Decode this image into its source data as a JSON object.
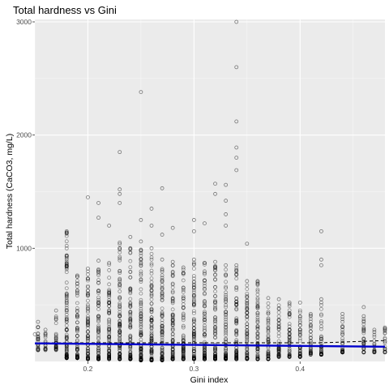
{
  "chart_data": {
    "type": "scatter",
    "title": "Total hardness vs Gini",
    "xlabel": "Gini index",
    "ylabel": "Total hardness (CaCO3, mg/L)",
    "xlim": [
      0.15,
      0.48
    ],
    "ylim": [
      0,
      3000
    ],
    "x_ticks": [
      0.2,
      0.3,
      0.4
    ],
    "x_tick_labels": [
      "0.2",
      "0.3",
      "0.4"
    ],
    "y_ticks": [
      1000,
      2000,
      3000
    ],
    "y_tick_labels": [
      "1000",
      "2000",
      "3000"
    ],
    "grid": true,
    "legend": "none",
    "colors": {
      "panel": "#ebebeb",
      "grid_major": "#ffffff",
      "points": "#000000",
      "fit_line": "#0000cc",
      "dashed_line": "#000000"
    },
    "column_ranges": [
      {
        "x": 0.153,
        "min": 100,
        "max": 350
      },
      {
        "x": 0.16,
        "min": 100,
        "max": 280
      },
      {
        "x": 0.17,
        "min": 100,
        "max": 450
      },
      {
        "x": 0.18,
        "min": 30,
        "max": 1150
      },
      {
        "x": 0.19,
        "min": 30,
        "max": 760
      },
      {
        "x": 0.2,
        "min": 20,
        "max": 820
      },
      {
        "x": 0.21,
        "min": 20,
        "max": 890
      },
      {
        "x": 0.22,
        "min": 20,
        "max": 870
      },
      {
        "x": 0.23,
        "min": 20,
        "max": 1050
      },
      {
        "x": 0.24,
        "min": 20,
        "max": 1000
      },
      {
        "x": 0.25,
        "min": 10,
        "max": 1060
      },
      {
        "x": 0.26,
        "min": 10,
        "max": 1000
      },
      {
        "x": 0.27,
        "min": 10,
        "max": 900
      },
      {
        "x": 0.28,
        "min": 20,
        "max": 880
      },
      {
        "x": 0.29,
        "min": 20,
        "max": 830
      },
      {
        "x": 0.3,
        "min": 20,
        "max": 900
      },
      {
        "x": 0.31,
        "min": 20,
        "max": 870
      },
      {
        "x": 0.32,
        "min": 20,
        "max": 880
      },
      {
        "x": 0.33,
        "min": 20,
        "max": 850
      },
      {
        "x": 0.34,
        "min": 20,
        "max": 850
      },
      {
        "x": 0.35,
        "min": 20,
        "max": 710
      },
      {
        "x": 0.36,
        "min": 20,
        "max": 710
      },
      {
        "x": 0.37,
        "min": 20,
        "max": 560
      },
      {
        "x": 0.38,
        "min": 40,
        "max": 550
      },
      {
        "x": 0.39,
        "min": 40,
        "max": 520
      },
      {
        "x": 0.4,
        "min": 40,
        "max": 520
      },
      {
        "x": 0.41,
        "min": 60,
        "max": 420
      },
      {
        "x": 0.42,
        "min": 60,
        "max": 550
      },
      {
        "x": 0.44,
        "min": 80,
        "max": 420
      },
      {
        "x": 0.46,
        "min": 80,
        "max": 400
      },
      {
        "x": 0.47,
        "min": 80,
        "max": 260
      },
      {
        "x": 0.48,
        "min": 80,
        "max": 290
      }
    ],
    "outlier_points": [
      {
        "x": 0.15,
        "y": 240
      },
      {
        "x": 0.18,
        "y": 1140
      },
      {
        "x": 0.2,
        "y": 1450
      },
      {
        "x": 0.21,
        "y": 1400
      },
      {
        "x": 0.21,
        "y": 1270
      },
      {
        "x": 0.22,
        "y": 1200
      },
      {
        "x": 0.23,
        "y": 1850
      },
      {
        "x": 0.23,
        "y": 1520
      },
      {
        "x": 0.23,
        "y": 1480
      },
      {
        "x": 0.23,
        "y": 1400
      },
      {
        "x": 0.24,
        "y": 1100
      },
      {
        "x": 0.25,
        "y": 2380
      },
      {
        "x": 0.25,
        "y": 1250
      },
      {
        "x": 0.26,
        "y": 1350
      },
      {
        "x": 0.26,
        "y": 1200
      },
      {
        "x": 0.27,
        "y": 1530
      },
      {
        "x": 0.27,
        "y": 1120
      },
      {
        "x": 0.28,
        "y": 1180
      },
      {
        "x": 0.3,
        "y": 1250
      },
      {
        "x": 0.3,
        "y": 1150
      },
      {
        "x": 0.31,
        "y": 1220
      },
      {
        "x": 0.32,
        "y": 1570
      },
      {
        "x": 0.32,
        "y": 1480
      },
      {
        "x": 0.33,
        "y": 1560
      },
      {
        "x": 0.33,
        "y": 1420
      },
      {
        "x": 0.33,
        "y": 1300
      },
      {
        "x": 0.33,
        "y": 1200
      },
      {
        "x": 0.34,
        "y": 3000
      },
      {
        "x": 0.34,
        "y": 2600
      },
      {
        "x": 0.34,
        "y": 2120
      },
      {
        "x": 0.34,
        "y": 1890
      },
      {
        "x": 0.34,
        "y": 1800
      },
      {
        "x": 0.34,
        "y": 1690
      },
      {
        "x": 0.35,
        "y": 1040
      },
      {
        "x": 0.42,
        "y": 1150
      },
      {
        "x": 0.42,
        "y": 900
      },
      {
        "x": 0.42,
        "y": 850
      },
      {
        "x": 0.46,
        "y": 480
      },
      {
        "x": 0.47,
        "y": 280
      },
      {
        "x": 0.48,
        "y": 300
      }
    ],
    "fit_line": [
      {
        "x": 0.15,
        "y": 160
      },
      {
        "x": 0.48,
        "y": 130
      }
    ],
    "dashed_line": [
      {
        "x": 0.15,
        "y": 165
      },
      {
        "x": 0.42,
        "y": 165
      },
      {
        "x": 0.48,
        "y": 185
      }
    ]
  }
}
